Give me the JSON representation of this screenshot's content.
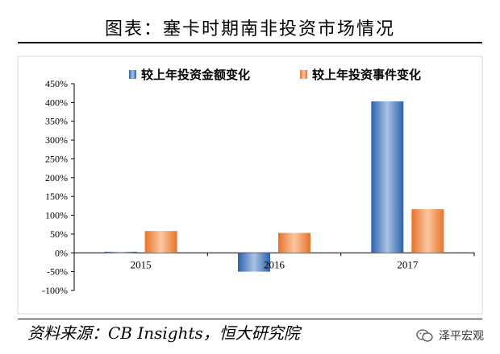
{
  "title": "图表：塞卡时期南非投资市场情况",
  "source": "资料来源：CB Insights，恒大研究院",
  "watermark": "泽平宏观",
  "watermark_icon": "wechat-icon",
  "colors": {
    "series1": "#4f7fc0",
    "series2": "#f0883c",
    "axis": "#000000",
    "tick_text": "#000000"
  },
  "chart_data": {
    "type": "bar",
    "title": "",
    "xlabel": "",
    "ylabel": "",
    "categories": [
      "2015",
      "2016",
      "2017"
    ],
    "series": [
      {
        "name": "较上年投资金额变化",
        "values": [
          3,
          -50,
          403
        ]
      },
      {
        "name": "较上年投资事件变化",
        "values": [
          58,
          53,
          116
        ]
      }
    ],
    "ylim": [
      -100,
      450
    ],
    "yticks": [
      -100,
      -50,
      0,
      50,
      100,
      150,
      200,
      250,
      300,
      350,
      400,
      450
    ],
    "ytick_labels": [
      "-100%",
      "-50%",
      "0%",
      "50%",
      "100%",
      "150%",
      "200%",
      "250%",
      "300%",
      "350%",
      "400%",
      "450%"
    ],
    "legend_position": "top",
    "grid": false
  }
}
